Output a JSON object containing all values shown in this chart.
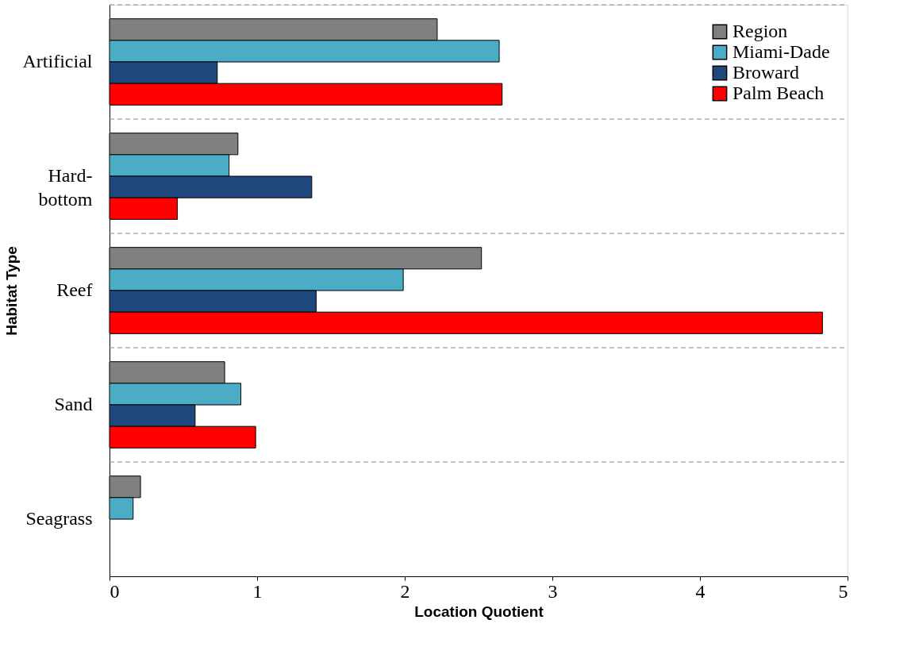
{
  "chart_data": {
    "type": "bar",
    "orientation": "horizontal",
    "categories": [
      "Artificial",
      "Hard-bottom",
      "Reef",
      "Sand",
      "Seagrass"
    ],
    "series": [
      {
        "name": "Region",
        "color": "#808080",
        "values": [
          2.22,
          0.87,
          2.52,
          0.78,
          0.21
        ]
      },
      {
        "name": "Miami-Dade",
        "color": "#4bacc6",
        "values": [
          2.64,
          0.81,
          1.99,
          0.89,
          0.16
        ]
      },
      {
        "name": "Broward",
        "color": "#1f497d",
        "values": [
          0.73,
          1.37,
          1.4,
          0.58,
          null
        ]
      },
      {
        "name": "Palm Beach",
        "color": "#ff0000",
        "values": [
          2.66,
          0.46,
          4.83,
          0.99,
          null
        ]
      }
    ],
    "xlabel": "Location Quotient",
    "ylabel": "Habitat Type",
    "xlim": [
      0,
      5
    ],
    "xticks": [
      0,
      1,
      2,
      3,
      4,
      5
    ],
    "grid": "y",
    "legend": "top right"
  }
}
